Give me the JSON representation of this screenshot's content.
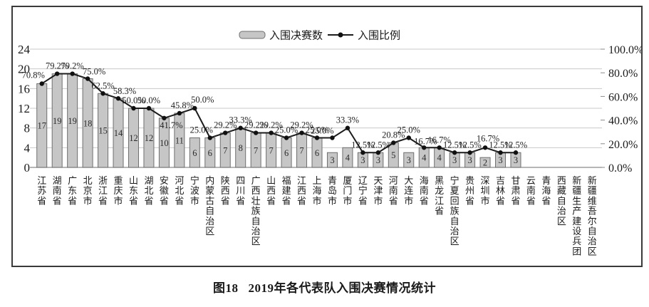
{
  "figure": {
    "caption_label": "图18",
    "caption_title": "2019年各代表队入围决赛情况统计"
  },
  "chart_data": {
    "type": "bar+line",
    "title": "图18 2019年各代表队入围决赛情况统计",
    "legend_position": "top-center",
    "grid": true,
    "categories": [
      "江苏省",
      "湖南省",
      "广东省",
      "北京市",
      "浙江省",
      "重庆市",
      "山东省",
      "湖北省",
      "安徽省",
      "河北省",
      "宁波市",
      "内蒙古自治区",
      "陕西省",
      "四川省",
      "广西壮族自治区",
      "山西省",
      "福建省",
      "江西省",
      "上海市",
      "青岛市",
      "厦门市",
      "辽宁省",
      "天津市",
      "河南省",
      "大连市",
      "海南省",
      "黑龙江省",
      "宁夏回族自治区",
      "贵州省",
      "深圳市",
      "吉林省",
      "甘肃省",
      "云南省",
      "青海省",
      "西藏自治区",
      "新疆生产建设兵团",
      "新疆维吾尔自治区"
    ],
    "series": [
      {
        "name": "入围决赛数",
        "type": "bar",
        "axis": "left",
        "values": [
          17,
          19,
          19,
          18,
          15,
          14,
          12,
          12,
          10,
          11,
          6,
          6,
          7,
          8,
          7,
          7,
          6,
          7,
          6,
          3,
          4,
          3,
          3,
          5,
          3,
          4,
          4,
          3,
          3,
          2,
          3,
          3,
          null,
          null,
          null,
          null,
          null
        ]
      },
      {
        "name": "入围比例",
        "type": "line",
        "axis": "right",
        "values": [
          70.8,
          79.2,
          79.2,
          75.0,
          62.5,
          58.3,
          50.0,
          50.0,
          41.7,
          45.8,
          50.0,
          25.0,
          29.2,
          33.3,
          29.2,
          29.2,
          25.0,
          29.2,
          25.0,
          25.0,
          33.3,
          12.5,
          12.5,
          20.8,
          25.0,
          16.7,
          16.7,
          12.5,
          12.5,
          16.7,
          12.5,
          12.5,
          null,
          null,
          null,
          null,
          null
        ],
        "labels": [
          "70.8%",
          "79.2%",
          "79.2%",
          "75.0%",
          "62.5%",
          "58.3%",
          "50.0%",
          "50.0%",
          "41.7%",
          "45.8%",
          "50.0%",
          "25.0%",
          "29.2%",
          "33.3%",
          "29.2%",
          "29.2%",
          "25.0%",
          "29.2%",
          "25.0%",
          "25.0%",
          "33.3%",
          "12.5%",
          "12.5%",
          "20.8%",
          "25.0%",
          "16.7%",
          "16.7%",
          "12.5%",
          "12.5%",
          "16.7%",
          "12.5%",
          "12.5%",
          null,
          null,
          null,
          null,
          null
        ]
      }
    ],
    "left_axis": {
      "min": 0,
      "max": 24,
      "ticks": [
        24,
        20,
        16,
        12,
        8,
        4,
        0
      ]
    },
    "right_axis": {
      "min": 0,
      "max": 100,
      "ticks": [
        "100.0%",
        "80.0%",
        "60.0%",
        "40.0%",
        "20.0%",
        "0.0%"
      ]
    },
    "colors": {
      "bar_fill": "#c6c6c6",
      "bar_stroke": "#6f6f6f",
      "line": "#1c1c1c",
      "marker": "#111111",
      "grid": "#c9c9c9",
      "axis": "#8a8a8a",
      "text": "#1a1a1a"
    }
  }
}
